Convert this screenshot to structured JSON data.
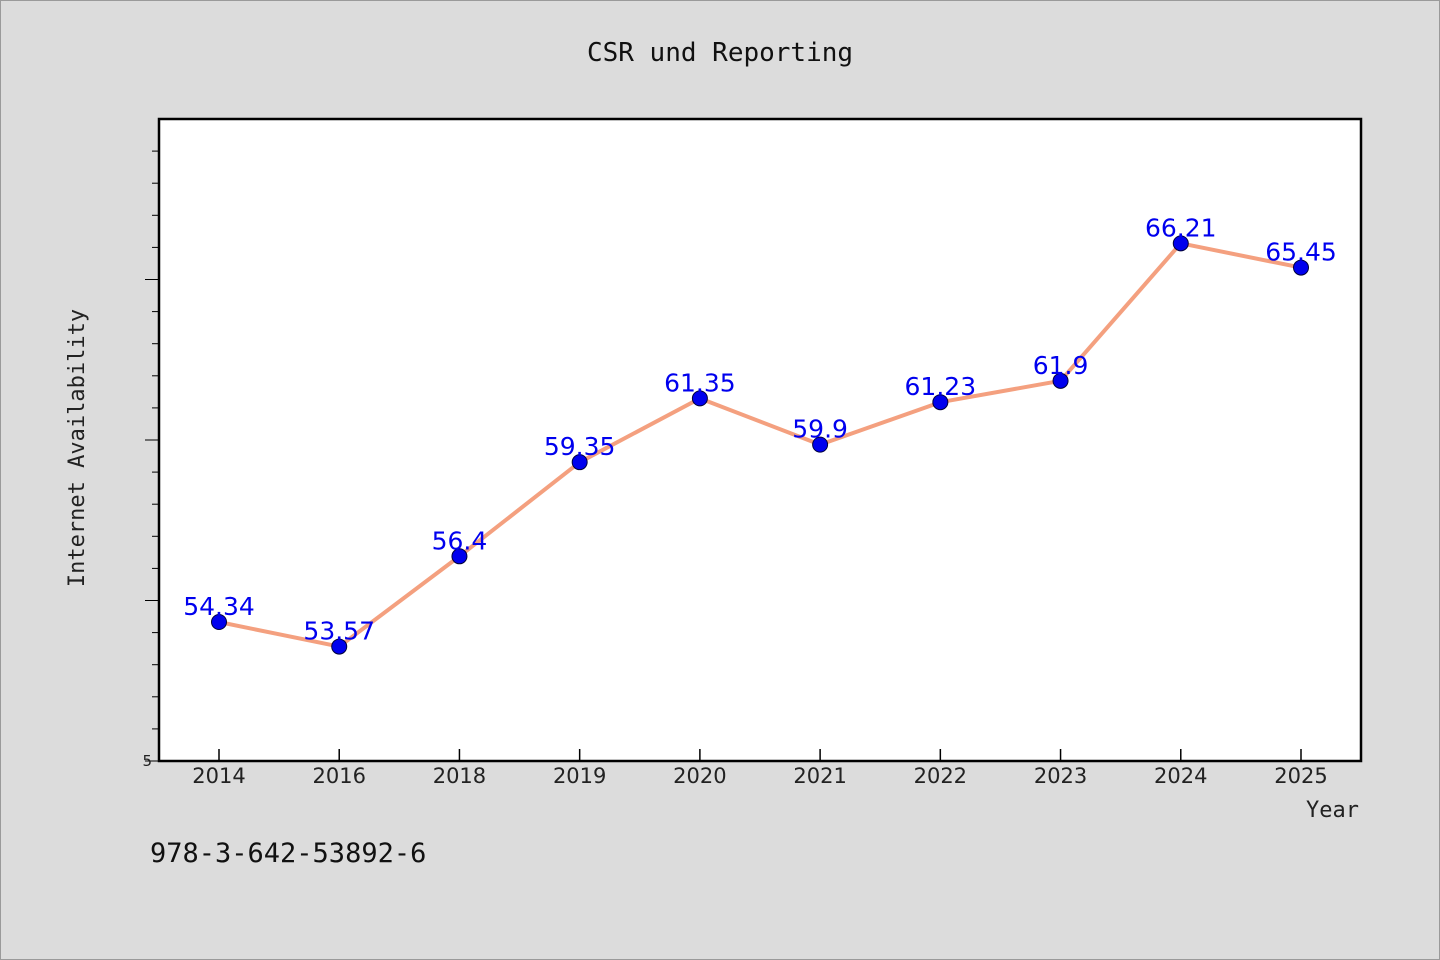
{
  "chart_data": {
    "type": "line",
    "title": "CSR und Reporting",
    "xlabel": "Year",
    "ylabel": "Internet Availability",
    "categories": [
      "2014",
      "2016",
      "2018",
      "2019",
      "2020",
      "2021",
      "2022",
      "2023",
      "2024",
      "2025"
    ],
    "series": [
      {
        "values": [
          54.34,
          53.57,
          56.4,
          59.35,
          61.35,
          59.9,
          61.23,
          61.9,
          66.21,
          65.45
        ],
        "labels": [
          "54.34",
          "53.57",
          "56.4",
          "59.35",
          "61.35",
          "59.9",
          "61.23",
          "61.9",
          "66.21",
          "65.45"
        ],
        "line_color": "#f4a07f",
        "marker_color": "#0000ee"
      }
    ],
    "ytick_label": "5",
    "grid": false,
    "legend": "none"
  },
  "footer": {
    "isbn": "978-3-642-53892-6"
  },
  "colors": {
    "background": "#dcdcdc",
    "plot_background": "#ffffff"
  }
}
